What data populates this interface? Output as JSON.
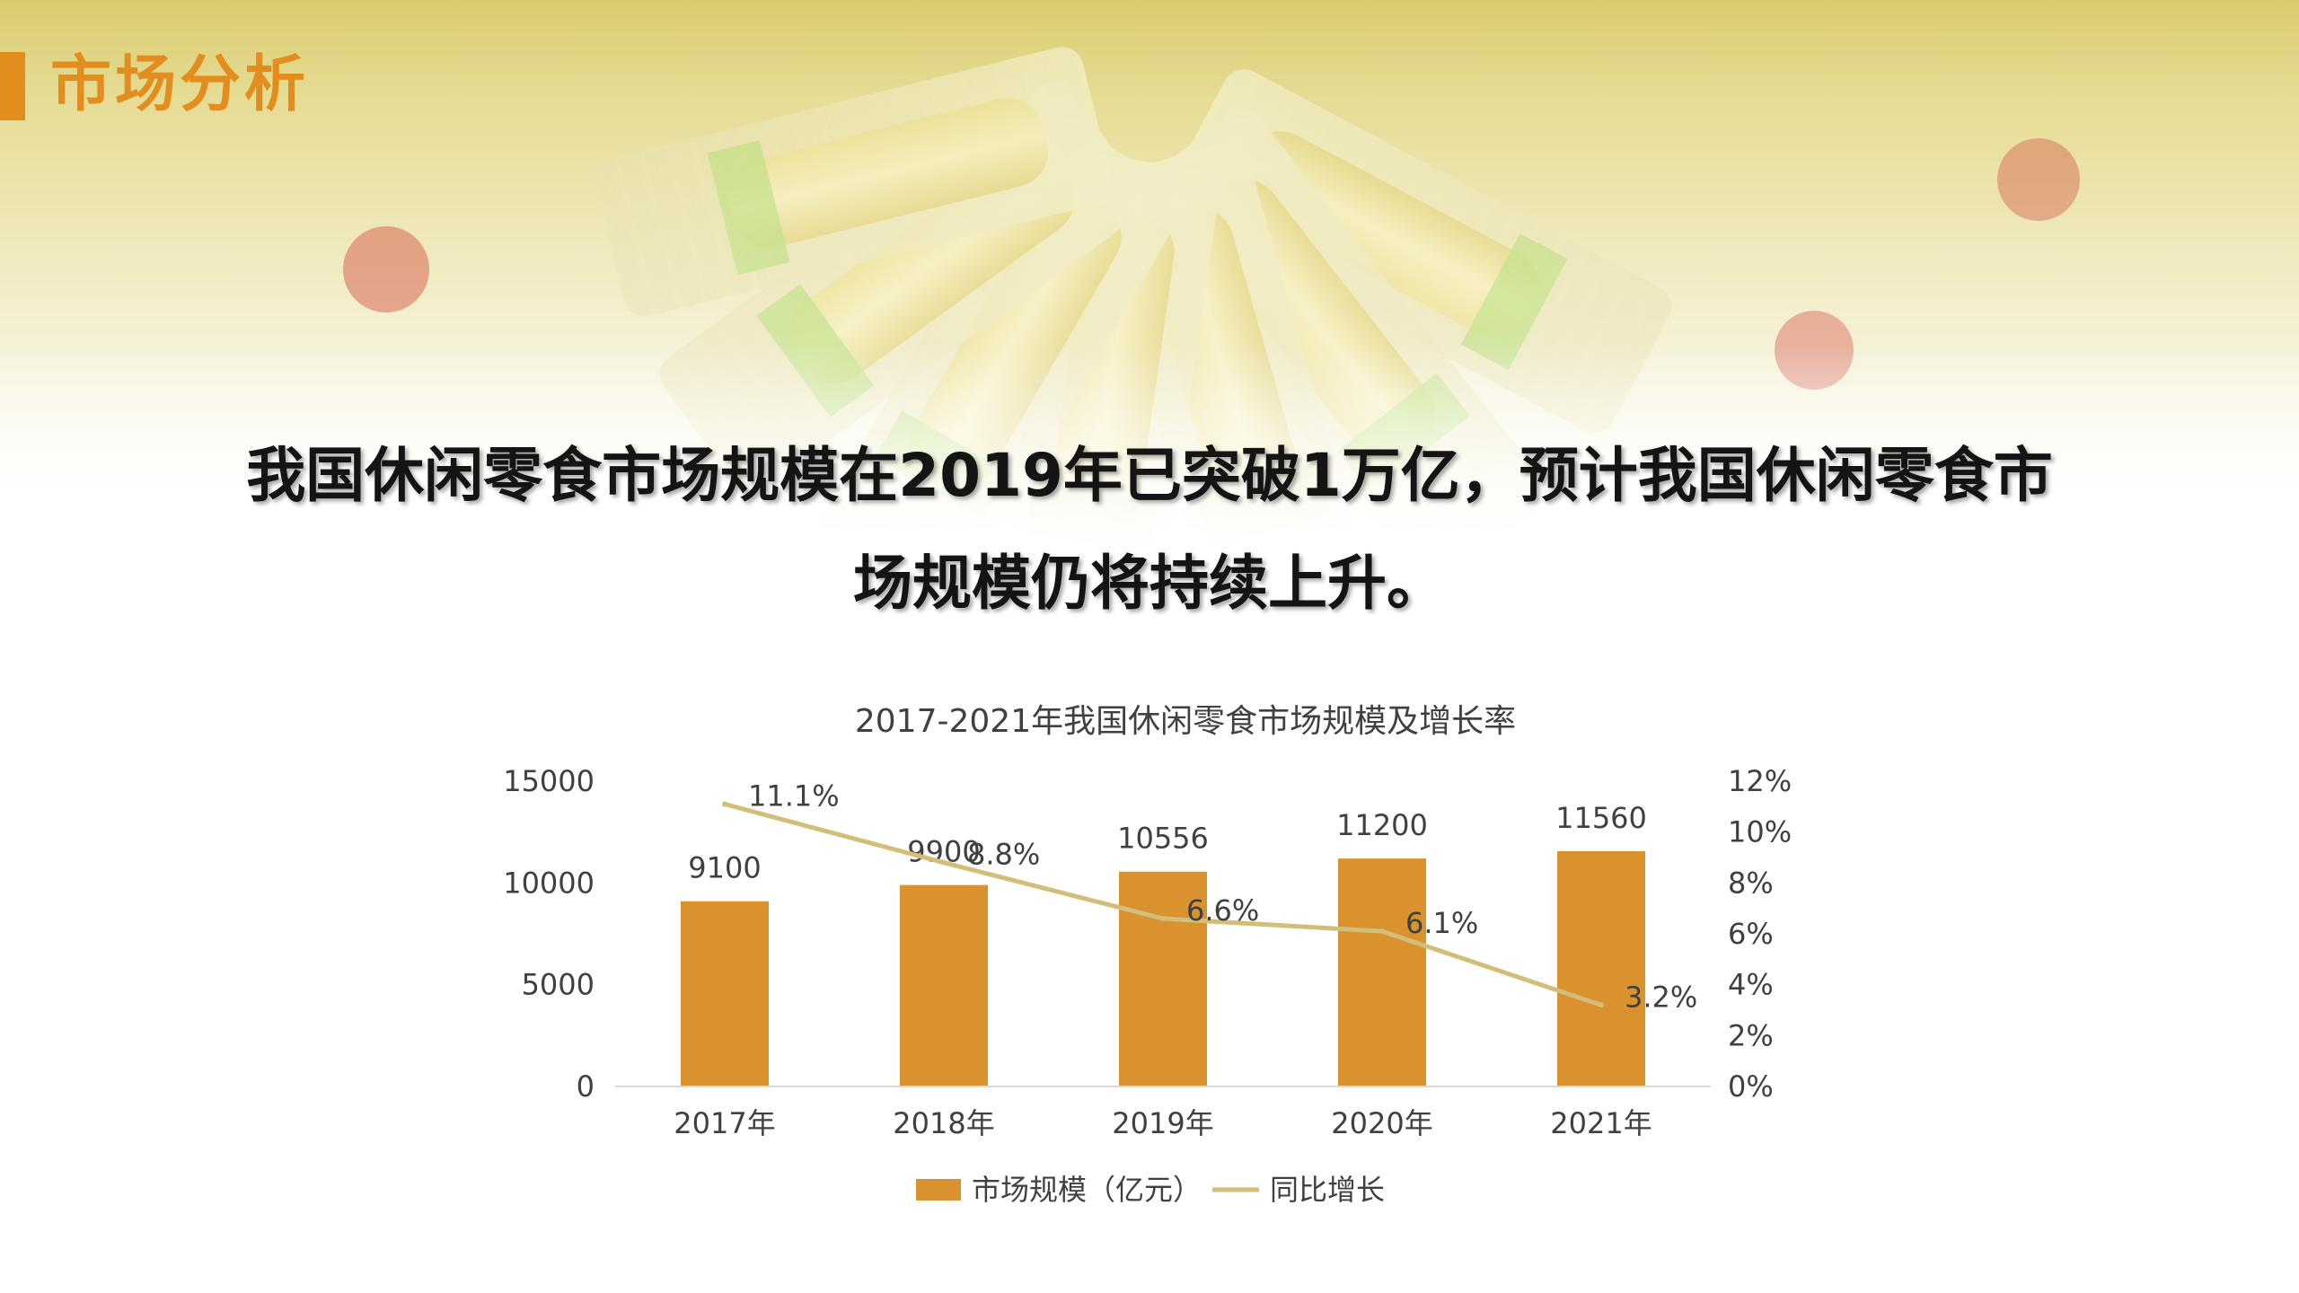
{
  "section": {
    "title": "市场分析"
  },
  "headline": {
    "line1": "我国休闲零食市场规模在2019年已突破1万亿，预计我国休闲零食市",
    "line2": "场规模仍将持续上升。"
  },
  "colors": {
    "accent": "#e38d1f",
    "bar": "#d9922d",
    "line": "#d2be78",
    "axis_text": "#404040"
  },
  "chart_data": {
    "type": "bar",
    "title": "2017-2021年我国休闲零食市场规模及增长率",
    "categories": [
      "2017年",
      "2018年",
      "2019年",
      "2020年",
      "2021年"
    ],
    "series": [
      {
        "name": "市场规模（亿元）",
        "type": "bar",
        "axis": "left",
        "values": [
          9100,
          9900,
          10556,
          11200,
          11560
        ],
        "labels": [
          "9100",
          "9900",
          "10556",
          "11200",
          "11560"
        ]
      },
      {
        "name": "同比增长",
        "type": "line",
        "axis": "right",
        "values": [
          11.1,
          8.8,
          6.6,
          6.1,
          3.2
        ],
        "labels": [
          "11.1%",
          "8.8%",
          "6.6%",
          "6.1%",
          "3.2%"
        ]
      }
    ],
    "y_left": {
      "min": 0,
      "max": 15000,
      "ticks": [
        "0",
        "5000",
        "10000",
        "15000"
      ]
    },
    "y_right": {
      "min": 0,
      "max": 12,
      "ticks": [
        "0%",
        "2%",
        "4%",
        "6%",
        "8%",
        "10%",
        "12%"
      ]
    },
    "grid": false,
    "legend": "bottom"
  }
}
